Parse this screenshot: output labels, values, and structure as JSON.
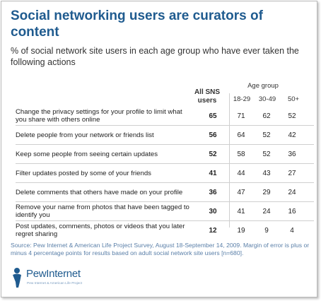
{
  "title": "Social networking users are curators of content",
  "subtitle": "% of social network site users in each age group who have ever taken the following actions",
  "logo": {
    "name": "PewInternet",
    "tagline": "Pew Internet & American Life Project"
  },
  "source": "Source: Pew Internet & American Life Project Survey, August 18-September 14, 2009. Margin of error is plus or minus 4 percentage points for results based on adult social network site users [n=680].",
  "chart_data": {
    "type": "table",
    "group_label": "Age group",
    "columns": [
      {
        "label": "All SNS users"
      },
      {
        "label": "18-29"
      },
      {
        "label": "30-49"
      },
      {
        "label": "50+"
      }
    ],
    "rows": [
      {
        "label": "Change the privacy settings for your profile to limit what you share with others online",
        "values": [
          65,
          71,
          62,
          52
        ]
      },
      {
        "label": "Delete people from your network or friends list",
        "values": [
          56,
          64,
          52,
          42
        ]
      },
      {
        "label": "Keep some people from seeing certain updates",
        "values": [
          52,
          58,
          52,
          36
        ]
      },
      {
        "label": "Filter updates posted by some of your friends",
        "values": [
          41,
          44,
          43,
          27
        ]
      },
      {
        "label": "Delete comments that others have made on your profile",
        "values": [
          36,
          47,
          29,
          24
        ]
      },
      {
        "label": "Remove your name from photos that have been tagged to identify you",
        "values": [
          30,
          41,
          24,
          16
        ]
      },
      {
        "label": "Post updates, comments, photos or videos that you later regret sharing",
        "values": [
          12,
          19,
          9,
          4
        ]
      }
    ]
  }
}
